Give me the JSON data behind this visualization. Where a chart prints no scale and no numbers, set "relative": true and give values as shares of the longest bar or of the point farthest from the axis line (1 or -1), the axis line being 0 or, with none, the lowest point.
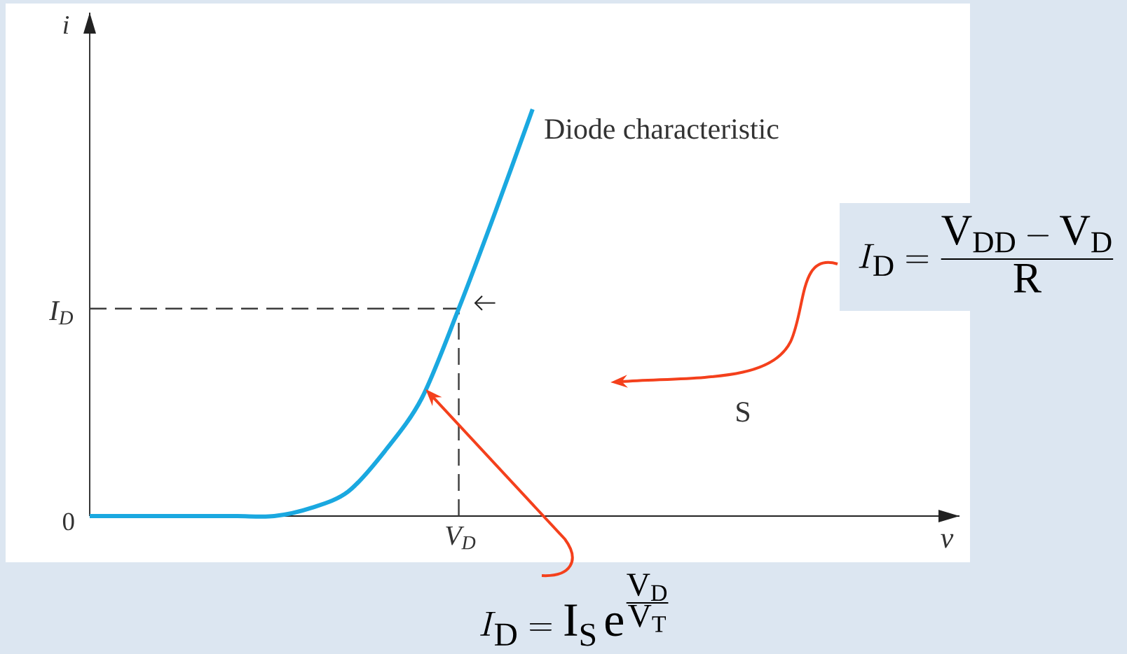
{
  "chart_data": {
    "type": "line",
    "relative": true,
    "ylabel": "i",
    "categories": [
      null,
      null,
      null,
      null,
      null,
      null,
      null,
      null,
      null,
      null,
      null,
      null,
      null
    ],
    "series": [
      {
        "color": "#1aa8e0",
        "values": [
          0,
          0,
          0,
          0,
          0,
          0,
          0.02,
          0.06,
          0.16,
          0.29,
          0.51,
          0.75,
          1
        ]
      }
    ],
    "ref_lines": [
      {
        "axis": "y",
        "value": 0.51,
        "label": "I$_{D}$",
        "color": "#3c3c3c",
        "line_style": "dashed"
      }
    ],
    "annotations": [
      "0",
      "V$_{D}$",
      "S",
      "I_{\\mathrm{D}} = \\frac{\\mathrm{V_{DD}} - \\mathrm{V_{D}}}{\\mathrm{R}}",
      "I_{\\mathrm{D}} = \\mathrm{I_{S}}\\,\\mathrm{e}^{\\tfrac{\\mathrm{V_{D}}}{\\mathrm{V_{T}}}}",
      "v",
      "Diode characteristic"
    ]
  }
}
